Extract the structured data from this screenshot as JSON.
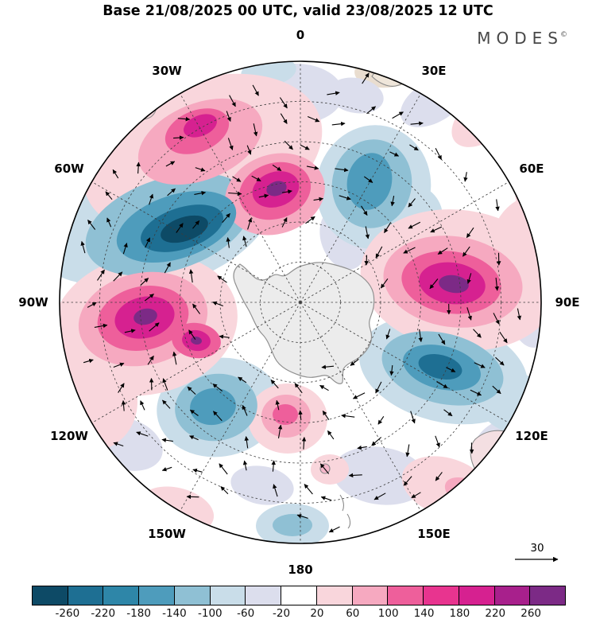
{
  "header": {
    "title": "Base 21/08/2025 00 UTC, valid 23/08/2025 12 UTC"
  },
  "logo": {
    "text": "MODES",
    "mark": "©"
  },
  "map": {
    "longitude_labels": [
      {
        "label": "0",
        "angle": 0
      },
      {
        "label": "30E",
        "angle": 30
      },
      {
        "label": "60E",
        "angle": 60
      },
      {
        "label": "90E",
        "angle": 90
      },
      {
        "label": "120E",
        "angle": 120
      },
      {
        "label": "150E",
        "angle": 150
      },
      {
        "label": "180",
        "angle": 180
      },
      {
        "label": "150W",
        "angle": 210
      },
      {
        "label": "120W",
        "angle": 240
      },
      {
        "label": "90W",
        "angle": 270
      },
      {
        "label": "60W",
        "angle": 300
      },
      {
        "label": "30W",
        "angle": 330
      }
    ],
    "reference_arrow_value": "30"
  },
  "chart_data": {
    "type": "heatmap",
    "subtype": "south-polar-stereographic anomaly map with wind vector overlay",
    "title": "Base 21/08/2025 00 UTC, valid 23/08/2025 12 UTC",
    "projection": "Southern Hemisphere polar stereographic, 0 degrees longitude at top, pole at center",
    "graticule": {
      "longitude_spacing_deg": 30,
      "latitude_circle_count": 5,
      "style": "dashed"
    },
    "colorbar": {
      "levels": [
        -260,
        -220,
        -180,
        -140,
        -100,
        -60,
        -20,
        20,
        60,
        100,
        140,
        180,
        220,
        260
      ],
      "tick_labels": [
        "-260",
        "-220",
        "-180",
        "-140",
        "-100",
        "-60",
        "-20",
        "20",
        "60",
        "100",
        "140",
        "180",
        "220",
        "260"
      ],
      "colors": [
        "#0d4a66",
        "#1e6f93",
        "#2e86a8",
        "#4e9cbc",
        "#8fc0d4",
        "#c9dde9",
        "#dcdeed",
        "#ffffff",
        "#f9d6dc",
        "#f6a9c0",
        "#ee5f9b",
        "#e8348f",
        "#d62190",
        "#a8208c",
        "#7c2a86"
      ],
      "extend": "both"
    },
    "wind_vectors": {
      "reference_value": 30,
      "style": "small black arrows over field"
    },
    "anomaly_centers_estimated": [
      {
        "screen_region": "upper-center-left (near 10W sector)",
        "value": 240
      },
      {
        "screen_region": "upper-left band (near 30W sector)",
        "value": 180
      },
      {
        "screen_region": "left-center primary (90W sector)",
        "value": 250
      },
      {
        "screen_region": "left-center secondary (80W sector)",
        "value": 230
      },
      {
        "screen_region": "right large center (90E sector)",
        "value": 260
      },
      {
        "screen_region": "bottom-center small (180 sector)",
        "value": 120
      },
      {
        "screen_region": "upper-left trough (60W sector)",
        "value": -270
      },
      {
        "screen_region": "upper-right trough (30E sector)",
        "value": -150
      },
      {
        "screen_region": "right-lower trough (110E sector)",
        "value": -210
      },
      {
        "screen_region": "bottom-left trough (150W sector)",
        "value": -140
      }
    ]
  }
}
